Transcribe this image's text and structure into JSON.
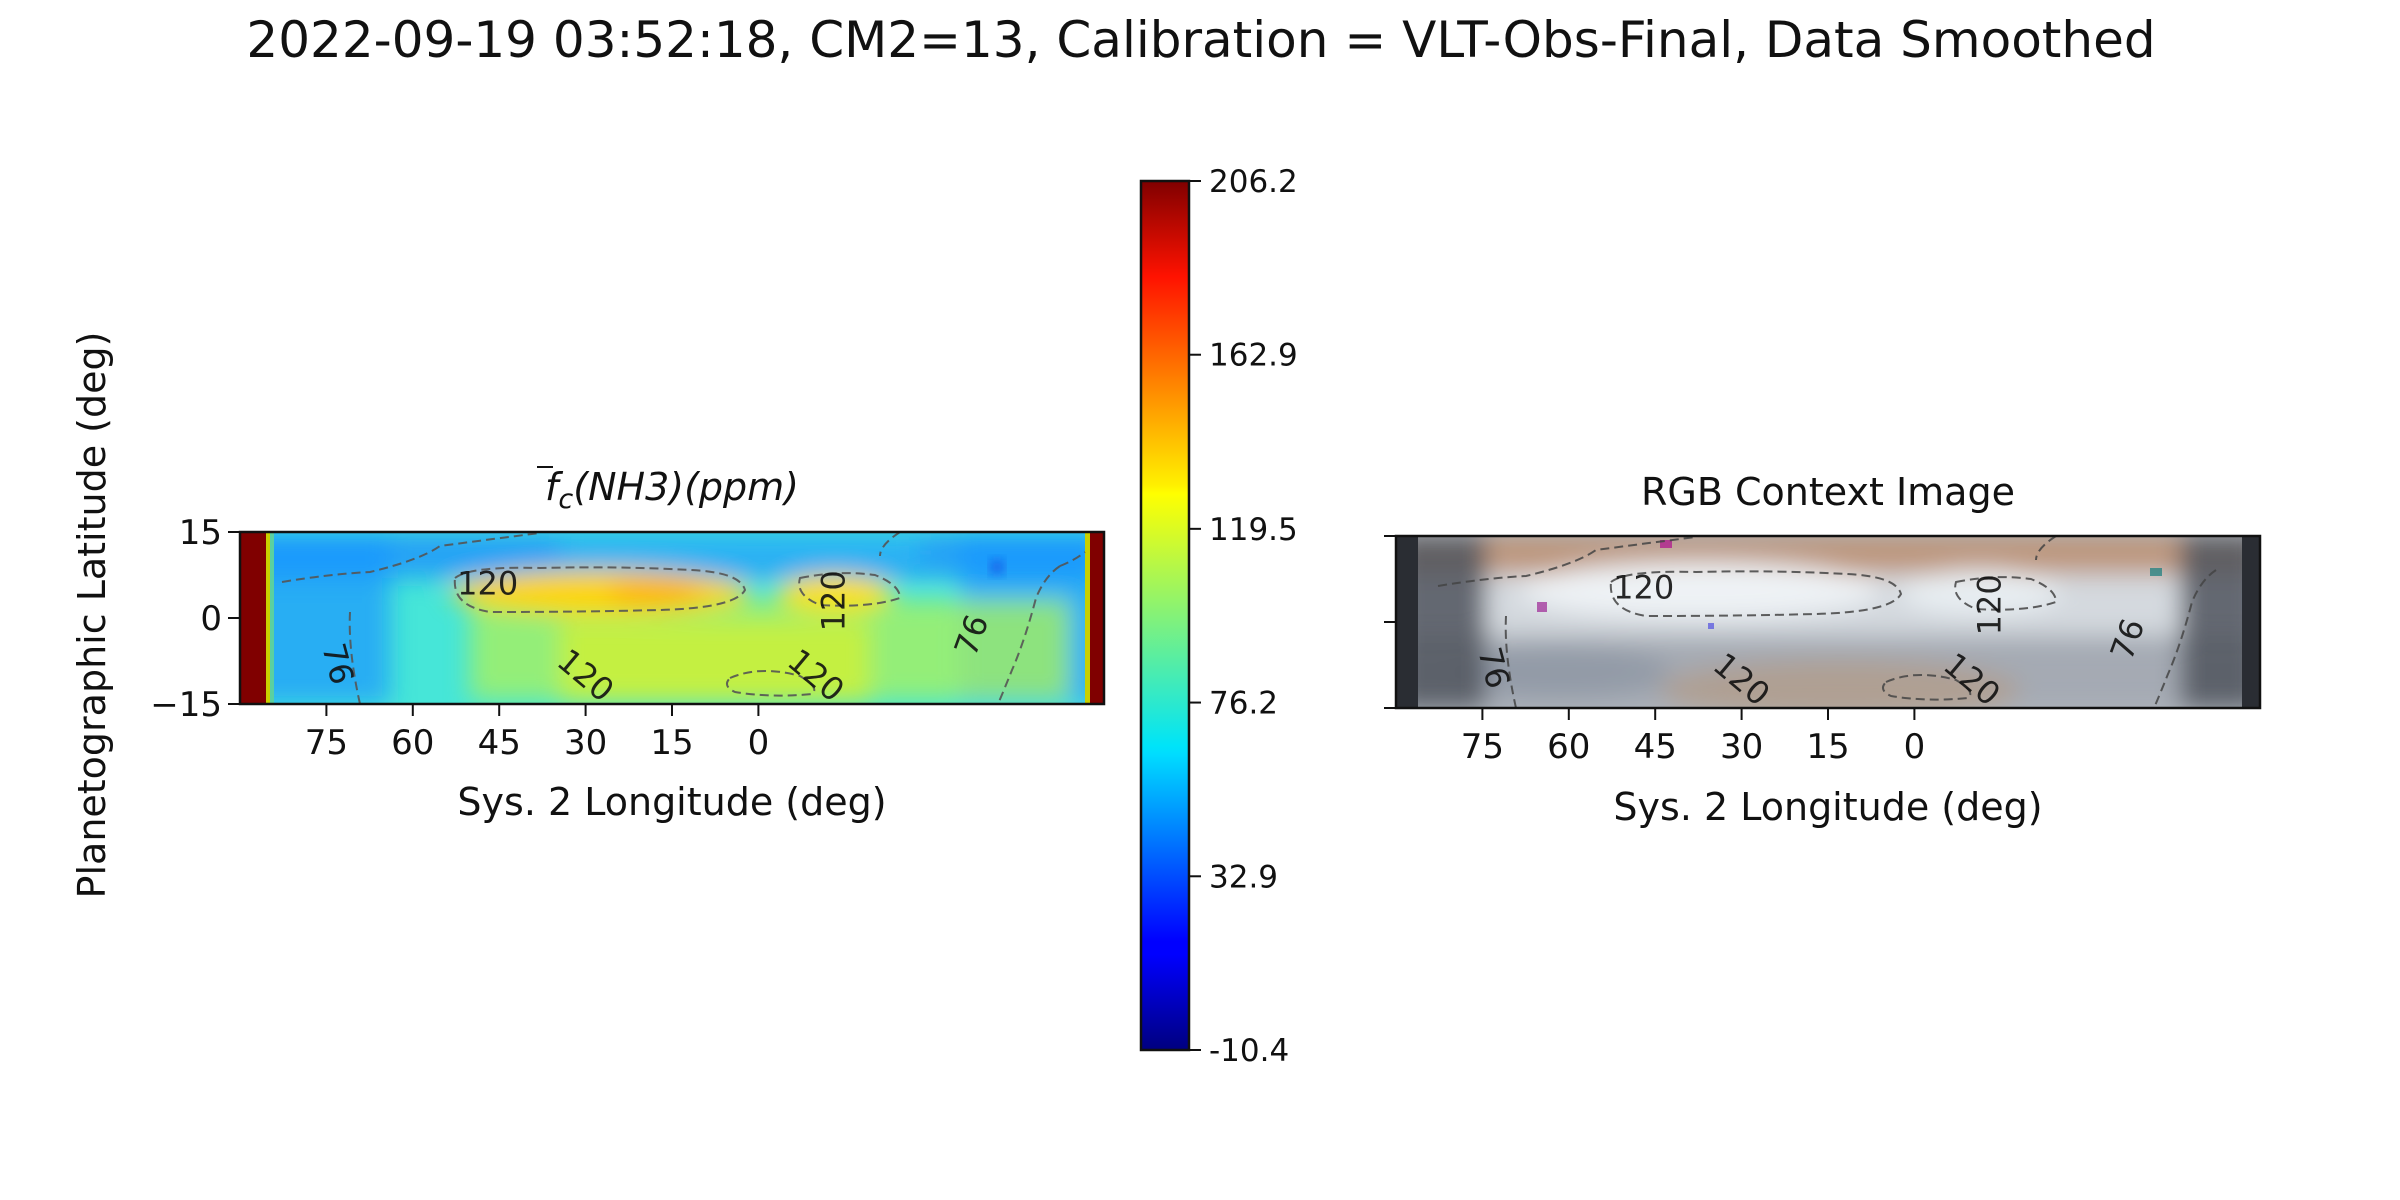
{
  "figure": {
    "suptitle": "2022-09-19 03:52:18, CM2=13, Calibration = VLT-Obs-Final, Data Smoothed"
  },
  "colors": {
    "contour_line": "#555555",
    "frame": "#111111",
    "colormap": "jet",
    "map_background": "#46e6d8",
    "map_limb": "#800000"
  },
  "chart_data": [
    {
      "type": "heatmap",
      "title": "f̄c(NH3)(ppm)",
      "title_math": {
        "base": "f",
        "subscript": "c",
        "rest": "(NH3)(ppm)"
      },
      "xlabel": "Sys. 2 Longitude (deg)",
      "ylabel": "Planetographic Latitude (deg)",
      "xlim": [
        90,
        -60
      ],
      "ylim": [
        -15,
        15
      ],
      "x_ticks": [
        "75",
        "60",
        "45",
        "30",
        "15",
        "0"
      ],
      "x_tick_values": [
        75,
        60,
        45,
        30,
        15,
        0
      ],
      "y_ticks": [
        "15",
        "0",
        "−15"
      ],
      "y_tick_values": [
        15,
        0,
        -15
      ],
      "contour_levels": [
        76,
        120
      ],
      "contour_labels": [
        {
          "text": "120",
          "lon": 47,
          "lat": 6
        },
        {
          "text": "120",
          "lon": 30,
          "lat": -10
        },
        {
          "text": "120",
          "lon": -13,
          "lat": 3
        },
        {
          "text": "120",
          "lon": -10,
          "lat": -10
        },
        {
          "text": "76",
          "lon": 73,
          "lat": -8
        },
        {
          "text": "76",
          "lon": -37,
          "lat": -3
        }
      ],
      "grid": false,
      "legend": "none"
    },
    {
      "type": "heatmap",
      "title": "RGB Context Image",
      "xlabel": "Sys. 2 Longitude (deg)",
      "xlim": [
        90,
        -60
      ],
      "ylim": [
        -15,
        15
      ],
      "x_ticks": [
        "75",
        "60",
        "45",
        "30",
        "15",
        "0"
      ],
      "x_tick_values": [
        75,
        60,
        45,
        30,
        15,
        0
      ],
      "y_ticks": [],
      "contour_levels": [
        76,
        120
      ],
      "contour_labels": [
        {
          "text": "120",
          "lon": 47,
          "lat": 6
        },
        {
          "text": "120",
          "lon": 30,
          "lat": -10
        },
        {
          "text": "120",
          "lon": -13,
          "lat": 3
        },
        {
          "text": "120",
          "lon": -10,
          "lat": -10
        },
        {
          "text": "76",
          "lon": 73,
          "lat": -8
        },
        {
          "text": "76",
          "lon": -37,
          "lat": -3
        }
      ],
      "grid": false,
      "legend": "none"
    }
  ],
  "colorbar": {
    "vmin": -10.4,
    "vmax": 206.2,
    "ticks": [
      "206.2",
      "162.9",
      "119.5",
      "76.2",
      "32.9",
      "-10.4"
    ],
    "tick_values": [
      206.2,
      162.9,
      119.5,
      76.2,
      32.9,
      -10.4
    ]
  }
}
